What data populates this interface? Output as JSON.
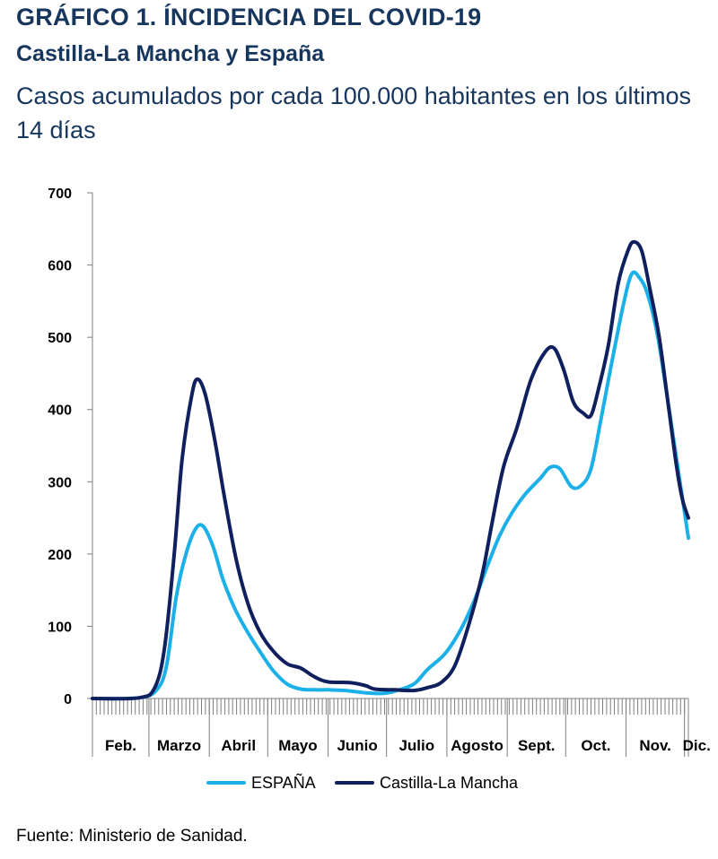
{
  "header": {
    "title": "GRÁFICO 1. ÍNCIDENCIA DEL COVID-19",
    "subtitle": "Castilla-La Mancha y España",
    "description": "Casos acumulados por cada 100.000 habitantes en los últimos 14 días"
  },
  "source": "Fuente: Ministerio de Sanidad.",
  "colors": {
    "espana": "#1cb0e8",
    "clm": "#101f5e",
    "axis": "#7f7f7f"
  },
  "chart_data": {
    "type": "line",
    "ylim": [
      0,
      700
    ],
    "yticks": [
      0,
      100,
      200,
      300,
      400,
      500,
      600,
      700
    ],
    "ytick_labels": [
      "0",
      "100",
      "200",
      "300",
      "400",
      "500",
      "600",
      "700"
    ],
    "xlim": [
      "2020-02-01",
      "2020-12-03"
    ],
    "month_labels": [
      "Feb.",
      "Marzo",
      "Abril",
      "Mayo",
      "Junio",
      "Julio",
      "Agosto",
      "Sept.",
      "Oct.",
      "Nov.",
      "Dic."
    ],
    "legend": {
      "position": "bottom",
      "entries": [
        "ESPAÑA",
        "Castilla-La Mancha"
      ]
    },
    "grid": false,
    "series": [
      {
        "name": "ESPAÑA",
        "color": "#1cb0e8",
        "points": [
          [
            "2020-02-01",
            0
          ],
          [
            "2020-02-25",
            1
          ],
          [
            "2020-03-05",
            12
          ],
          [
            "2020-03-10",
            45
          ],
          [
            "2020-03-15",
            140
          ],
          [
            "2020-03-20",
            200
          ],
          [
            "2020-03-25",
            235
          ],
          [
            "2020-03-29",
            238
          ],
          [
            "2020-04-03",
            210
          ],
          [
            "2020-04-08",
            165
          ],
          [
            "2020-04-14",
            125
          ],
          [
            "2020-04-20",
            95
          ],
          [
            "2020-04-27",
            65
          ],
          [
            "2020-05-04",
            38
          ],
          [
            "2020-05-11",
            20
          ],
          [
            "2020-05-18",
            13
          ],
          [
            "2020-05-25",
            12
          ],
          [
            "2020-06-01",
            12
          ],
          [
            "2020-06-10",
            11
          ],
          [
            "2020-06-20",
            8
          ],
          [
            "2020-06-28",
            7
          ],
          [
            "2020-07-05",
            10
          ],
          [
            "2020-07-15",
            20
          ],
          [
            "2020-07-22",
            40
          ],
          [
            "2020-07-31",
            62
          ],
          [
            "2020-08-08",
            95
          ],
          [
            "2020-08-15",
            135
          ],
          [
            "2020-08-22",
            185
          ],
          [
            "2020-08-28",
            225
          ],
          [
            "2020-09-03",
            255
          ],
          [
            "2020-09-10",
            282
          ],
          [
            "2020-09-18",
            305
          ],
          [
            "2020-09-23",
            320
          ],
          [
            "2020-09-28",
            318
          ],
          [
            "2020-10-04",
            293
          ],
          [
            "2020-10-09",
            295
          ],
          [
            "2020-10-14",
            318
          ],
          [
            "2020-10-19",
            385
          ],
          [
            "2020-10-25",
            470
          ],
          [
            "2020-10-31",
            550
          ],
          [
            "2020-11-04",
            588
          ],
          [
            "2020-11-08",
            582
          ],
          [
            "2020-11-12",
            560
          ],
          [
            "2020-11-17",
            505
          ],
          [
            "2020-11-22",
            420
          ],
          [
            "2020-11-27",
            330
          ],
          [
            "2020-12-03",
            222
          ]
        ]
      },
      {
        "name": "Castilla-La Mancha",
        "color": "#101f5e",
        "points": [
          [
            "2020-02-01",
            0
          ],
          [
            "2020-02-25",
            1
          ],
          [
            "2020-03-04",
            15
          ],
          [
            "2020-03-09",
            70
          ],
          [
            "2020-03-14",
            200
          ],
          [
            "2020-03-18",
            330
          ],
          [
            "2020-03-23",
            420
          ],
          [
            "2020-03-26",
            442
          ],
          [
            "2020-03-30",
            420
          ],
          [
            "2020-04-04",
            355
          ],
          [
            "2020-04-09",
            275
          ],
          [
            "2020-04-15",
            190
          ],
          [
            "2020-04-21",
            130
          ],
          [
            "2020-04-27",
            92
          ],
          [
            "2020-05-04",
            65
          ],
          [
            "2020-05-11",
            48
          ],
          [
            "2020-05-18",
            42
          ],
          [
            "2020-05-25",
            30
          ],
          [
            "2020-06-01",
            23
          ],
          [
            "2020-06-12",
            22
          ],
          [
            "2020-06-20",
            18
          ],
          [
            "2020-06-25",
            13
          ],
          [
            "2020-07-05",
            12
          ],
          [
            "2020-07-15",
            11
          ],
          [
            "2020-07-22",
            15
          ],
          [
            "2020-07-29",
            22
          ],
          [
            "2020-08-05",
            45
          ],
          [
            "2020-08-12",
            100
          ],
          [
            "2020-08-19",
            170
          ],
          [
            "2020-08-24",
            240
          ],
          [
            "2020-08-30",
            320
          ],
          [
            "2020-09-06",
            375
          ],
          [
            "2020-09-13",
            440
          ],
          [
            "2020-09-20",
            478
          ],
          [
            "2020-09-25",
            485
          ],
          [
            "2020-09-30",
            455
          ],
          [
            "2020-10-05",
            410
          ],
          [
            "2020-10-10",
            395
          ],
          [
            "2020-10-14",
            392
          ],
          [
            "2020-10-18",
            430
          ],
          [
            "2020-10-23",
            490
          ],
          [
            "2020-10-28",
            575
          ],
          [
            "2020-11-02",
            620
          ],
          [
            "2020-11-05",
            632
          ],
          [
            "2020-11-09",
            620
          ],
          [
            "2020-11-13",
            570
          ],
          [
            "2020-11-18",
            500
          ],
          [
            "2020-11-23",
            400
          ],
          [
            "2020-11-27",
            320
          ],
          [
            "2020-11-30",
            275
          ],
          [
            "2020-12-03",
            250
          ]
        ]
      }
    ]
  }
}
